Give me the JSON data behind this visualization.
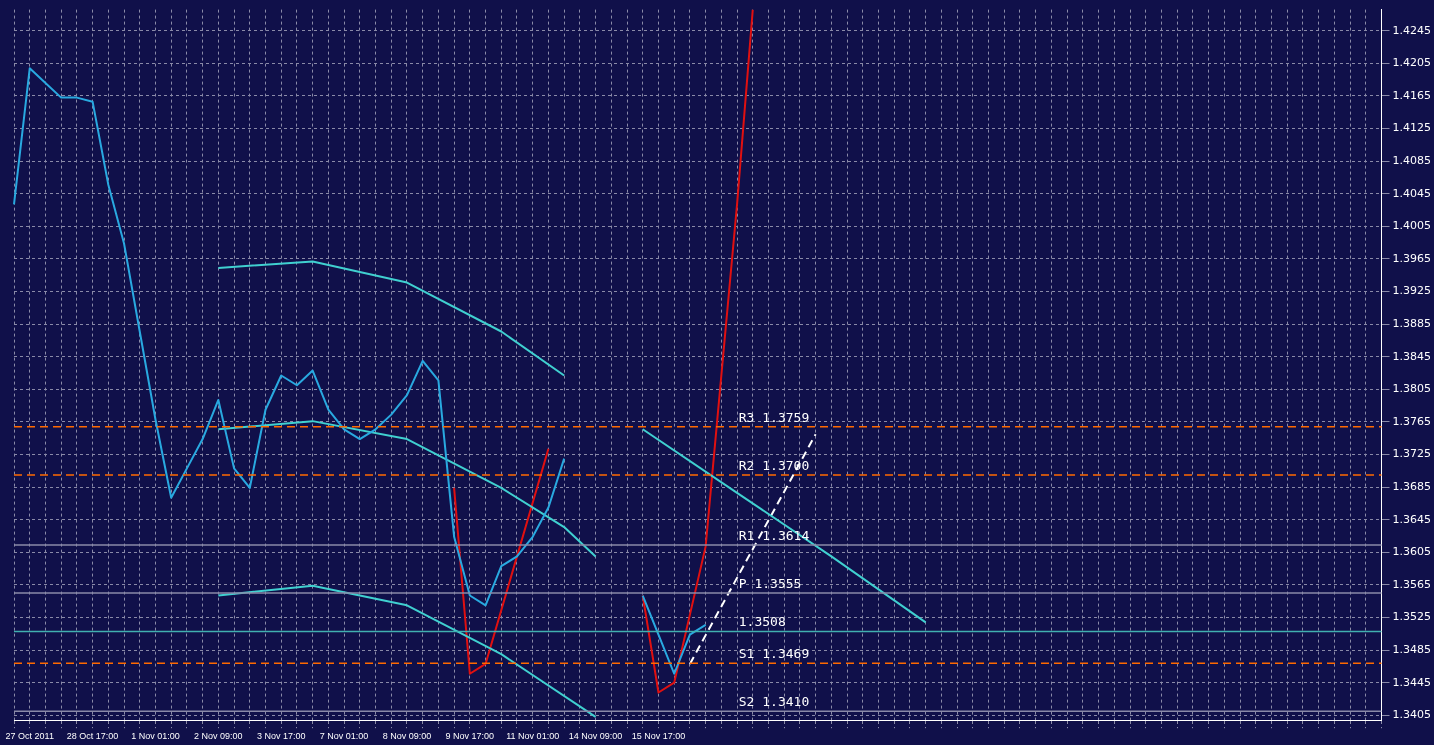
{
  "chart_data": {
    "type": "line",
    "categories": [
      null,
      "27 Oct 2011",
      null,
      null,
      null,
      "28 Oct 17:00",
      null,
      null,
      null,
      "1 Nov 01:00",
      null,
      null,
      null,
      "2 Nov 09:00",
      null,
      null,
      null,
      "3 Nov 17:00",
      null,
      null,
      null,
      "7 Nov 01:00",
      null,
      null,
      null,
      "8 Nov 09:00",
      null,
      null,
      null,
      "9 Nov 17:00",
      null,
      null,
      null,
      "11 Nov 01:00",
      null,
      null,
      null,
      "14 Nov 09:00",
      null,
      null,
      null,
      "15 Nov 17:00",
      null,
      null,
      null,
      null,
      null,
      null,
      null,
      null,
      null,
      null,
      null,
      null,
      null,
      null,
      null,
      null,
      null,
      null,
      null,
      null,
      null,
      null,
      null,
      null,
      null,
      null,
      null,
      null,
      null,
      null,
      null,
      null,
      null,
      null,
      null,
      null,
      null,
      null,
      null,
      null,
      null,
      null,
      null,
      null,
      null,
      null
    ],
    "series": [
      {
        "color": "#29a9e0",
        "values": [
          1.4032,
          1.4199,
          1.4181,
          1.4163,
          1.4163,
          1.4158,
          1.4056,
          1.3984,
          1.3876,
          1.3768,
          1.3672,
          1.3708,
          1.3744,
          1.3792,
          1.3708,
          1.3684,
          1.378,
          1.3822,
          1.381,
          1.3828,
          1.378,
          1.3756,
          1.3744,
          1.3756,
          1.3774,
          1.3798,
          1.384,
          1.3816,
          1.3624,
          1.3552,
          1.354,
          1.3588,
          1.36,
          1.3624,
          1.366,
          1.372,
          null,
          null,
          null,
          null,
          null,
          null,
          null,
          null,
          null,
          null,
          null,
          null,
          null,
          null,
          null,
          null,
          null,
          null,
          null,
          null,
          null,
          null,
          null,
          null,
          null,
          null,
          null,
          null,
          null,
          null,
          null,
          null,
          null,
          null,
          null,
          null,
          null,
          null,
          null,
          null,
          null,
          null,
          null,
          null,
          null,
          null,
          null,
          null,
          null,
          null,
          null,
          null
        ]
      },
      {
        "color": "#29a9e0",
        "values": [
          null,
          null,
          null,
          null,
          null,
          null,
          null,
          null,
          null,
          null,
          null,
          null,
          null,
          null,
          null,
          null,
          null,
          null,
          null,
          null,
          null,
          null,
          null,
          null,
          null,
          null,
          null,
          null,
          null,
          null,
          null,
          null,
          null,
          null,
          null,
          null,
          null,
          null,
          null,
          null,
          1.3552,
          1.3504,
          1.3456,
          1.3504,
          1.3516,
          null,
          null,
          null,
          null,
          null,
          null,
          null,
          null,
          null,
          null,
          null,
          null,
          null,
          null,
          null,
          null,
          null,
          null,
          null,
          null,
          null,
          null,
          null,
          null,
          null,
          null,
          null,
          null,
          null,
          null,
          null,
          null,
          null,
          null,
          null,
          null,
          null,
          null,
          null,
          null,
          null,
          null,
          null
        ]
      },
      {
        "color": "#40d0d0",
        "values": [
          null,
          null,
          null,
          null,
          null,
          null,
          null,
          null,
          null,
          null,
          null,
          null,
          null,
          1.3954,
          null,
          null,
          null,
          null,
          null,
          1.3962,
          null,
          null,
          null,
          null,
          null,
          1.3936,
          null,
          null,
          null,
          null,
          null,
          1.3876,
          null,
          null,
          null,
          1.3822,
          null,
          null,
          null,
          null,
          null,
          null,
          null,
          null,
          null,
          null,
          null,
          null,
          null,
          null,
          null,
          null,
          null,
          null,
          null,
          null,
          null,
          null,
          null,
          null,
          null,
          null,
          null,
          null,
          null,
          null,
          null,
          null,
          null,
          null,
          null,
          null,
          null,
          null,
          null,
          null,
          null,
          null,
          null,
          null,
          null,
          null,
          null,
          null,
          null,
          null,
          null,
          null
        ]
      },
      {
        "color": "#40d0d0",
        "values": [
          null,
          null,
          null,
          null,
          null,
          null,
          null,
          null,
          null,
          null,
          null,
          null,
          null,
          1.3756,
          null,
          null,
          null,
          null,
          null,
          1.3766,
          null,
          null,
          null,
          null,
          null,
          1.3744,
          null,
          null,
          null,
          null,
          null,
          1.3684,
          null,
          null,
          null,
          1.3636,
          null,
          1.36,
          null,
          null,
          null,
          null,
          null,
          null,
          null,
          null,
          null,
          null,
          null,
          null,
          null,
          null,
          null,
          null,
          null,
          null,
          null,
          null,
          null,
          null,
          null,
          null,
          null,
          null,
          null,
          null,
          null,
          null,
          null,
          null,
          null,
          null,
          null,
          null,
          null,
          null,
          null,
          null,
          null,
          null,
          null,
          null,
          null,
          null,
          null,
          null,
          null,
          null
        ]
      },
      {
        "color": "#40d0d0",
        "values": [
          null,
          null,
          null,
          null,
          null,
          null,
          null,
          null,
          null,
          null,
          null,
          null,
          null,
          1.3552,
          null,
          null,
          null,
          null,
          null,
          1.3564,
          null,
          null,
          null,
          null,
          null,
          1.354,
          null,
          null,
          null,
          null,
          null,
          1.348,
          null,
          null,
          null,
          null,
          null,
          1.3403,
          null,
          null,
          null,
          null,
          null,
          null,
          null,
          null,
          null,
          null,
          null,
          null,
          null,
          null,
          null,
          null,
          null,
          null,
          null,
          null,
          null,
          null,
          null,
          null,
          null,
          null,
          null,
          null,
          null,
          null,
          null,
          null,
          null,
          null,
          null,
          null,
          null,
          null,
          null,
          null,
          null,
          null,
          null,
          null,
          null,
          null,
          null,
          null,
          null,
          null
        ]
      },
      {
        "color": "#40d0d0",
        "values": [
          null,
          null,
          null,
          null,
          null,
          null,
          null,
          null,
          null,
          null,
          null,
          null,
          null,
          null,
          null,
          null,
          null,
          null,
          null,
          null,
          null,
          null,
          null,
          null,
          null,
          null,
          null,
          null,
          null,
          null,
          null,
          null,
          null,
          null,
          null,
          null,
          null,
          null,
          null,
          null,
          1.3756,
          null,
          null,
          null,
          null,
          null,
          1.3678,
          null,
          null,
          null,
          null,
          null,
          1.36,
          null,
          null,
          null,
          null,
          null,
          1.3519,
          null,
          null,
          null,
          null,
          null,
          null,
          null,
          null,
          null,
          null,
          null,
          null,
          null,
          null,
          null,
          null,
          null,
          null,
          null,
          null,
          null,
          null,
          null,
          null,
          null,
          null,
          null,
          null,
          null
        ]
      },
      {
        "color": "#e01010",
        "values": [
          null,
          null,
          null,
          null,
          null,
          null,
          null,
          null,
          null,
          null,
          null,
          null,
          null,
          null,
          null,
          null,
          null,
          null,
          null,
          null,
          null,
          null,
          null,
          null,
          null,
          null,
          null,
          null,
          1.3684,
          1.3456,
          1.3468,
          null,
          1.36,
          null,
          1.3732,
          null,
          null,
          null,
          null,
          null,
          null,
          null,
          null,
          null,
          null,
          null,
          null,
          null,
          null,
          null,
          null,
          null,
          null,
          null,
          null,
          null,
          null,
          null,
          null,
          null,
          null,
          null,
          null,
          null,
          null,
          null,
          null,
          null,
          null,
          null,
          null,
          null,
          null,
          null,
          null,
          null,
          null,
          null,
          null,
          null,
          null,
          null,
          null,
          null,
          null,
          null,
          null,
          null
        ]
      },
      {
        "color": "#e01010",
        "values": [
          null,
          null,
          null,
          null,
          null,
          null,
          null,
          null,
          null,
          null,
          null,
          null,
          null,
          null,
          null,
          null,
          null,
          null,
          null,
          null,
          null,
          null,
          null,
          null,
          null,
          null,
          null,
          null,
          null,
          null,
          null,
          null,
          null,
          null,
          null,
          null,
          null,
          null,
          null,
          null,
          1.3552,
          1.3433,
          1.3445,
          null,
          1.3612,
          null,
          1.4032,
          1.4271,
          null,
          null,
          null,
          null,
          null,
          null,
          null,
          null,
          null,
          null,
          null,
          null,
          null,
          null,
          null,
          null,
          null,
          null,
          null,
          null,
          null,
          null,
          null,
          null,
          null,
          null,
          null,
          null,
          null,
          null,
          null,
          null,
          null,
          null,
          null,
          null,
          null,
          null,
          null,
          null
        ]
      },
      {
        "color": "#ffffff",
        "line_style": "dashed",
        "values": [
          null,
          null,
          null,
          null,
          null,
          null,
          null,
          null,
          null,
          null,
          null,
          null,
          null,
          null,
          null,
          null,
          null,
          null,
          null,
          null,
          null,
          null,
          null,
          null,
          null,
          null,
          null,
          null,
          null,
          null,
          null,
          null,
          null,
          null,
          null,
          null,
          null,
          null,
          null,
          null,
          null,
          null,
          null,
          1.3468,
          null,
          null,
          null,
          null,
          null,
          null,
          null,
          1.375,
          null,
          null,
          null,
          null,
          null,
          null,
          null,
          null,
          null,
          null,
          null,
          null,
          null,
          null,
          null,
          null,
          null,
          null,
          null,
          null,
          null,
          null,
          null,
          null,
          null,
          null,
          null,
          null,
          null,
          null,
          null,
          null,
          null,
          null,
          null,
          null
        ]
      }
    ],
    "ylim": [
      1.3399,
      1.4271
    ],
    "yticks": [
      1.3405,
      1.3445,
      1.3485,
      1.3525,
      1.3565,
      1.3605,
      1.3645,
      1.3685,
      1.3725,
      1.3765,
      1.3805,
      1.3845,
      1.3885,
      1.3925,
      1.3965,
      1.4005,
      1.4045,
      1.4085,
      1.4125,
      1.4165,
      1.4205,
      1.4245
    ],
    "ref_lines": [
      {
        "axis": "y",
        "value": 1.3759,
        "label": "R3 1.3759",
        "color": "#ff6a00",
        "line_style": "dashed"
      },
      {
        "axis": "y",
        "value": 1.37,
        "label": "R2 1.3700",
        "color": "#ff6a00",
        "line_style": "dashed"
      },
      {
        "axis": "y",
        "value": 1.3614,
        "label": "R1 1.3614",
        "color": "#8a8aa8",
        "line_style": "solid"
      },
      {
        "axis": "y",
        "value": 1.3555,
        "label": "P 1.3555",
        "color": "#8a8aa8",
        "line_style": "solid"
      },
      {
        "axis": "y",
        "value": 1.3508,
        "label": "1.3508",
        "color": "#40b0b0",
        "line_style": "solid"
      },
      {
        "axis": "y",
        "value": 1.3469,
        "label": "S1 1.3469",
        "color": "#ff6a00",
        "line_style": "dashed"
      },
      {
        "axis": "y",
        "value": 1.341,
        "label": "S2 1.3410",
        "color": "#8a8aa8",
        "line_style": "solid"
      }
    ],
    "grid": true,
    "legend": false,
    "marker": "none",
    "line_style": "solid"
  }
}
